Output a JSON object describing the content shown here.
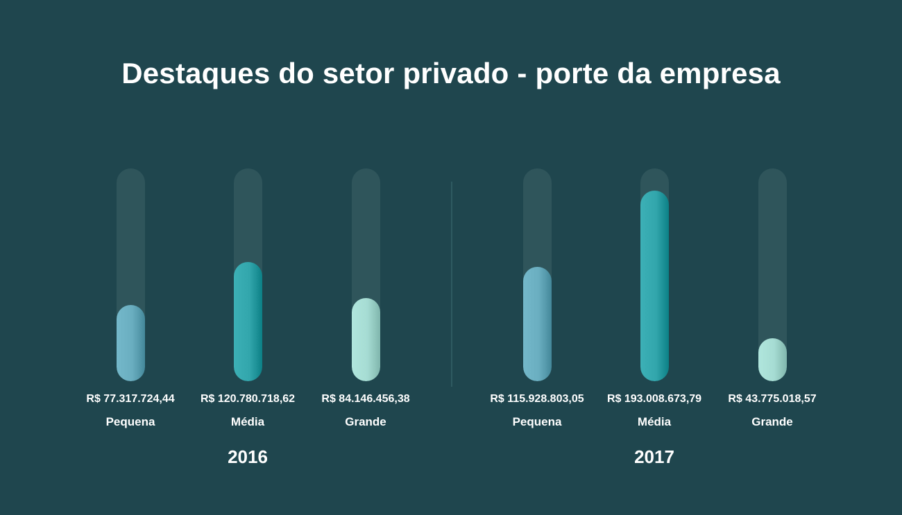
{
  "chart_data": {
    "type": "bar",
    "title": "Destaques do setor privado - porte da empresa",
    "ylim": [
      0,
      200000000
    ],
    "groups": [
      {
        "label": "2016",
        "bars": [
          {
            "category": "Pequena",
            "value": 77317724.44,
            "value_label": "R$ 77.317.724,44",
            "color": "#6aaec0"
          },
          {
            "category": "Média",
            "value": 120780718.62,
            "value_label": "R$ 120.780.718,62",
            "color": "#32a6ac"
          },
          {
            "category": "Grande",
            "value": 84146456.38,
            "value_label": "R$ 84.146.456,38",
            "color": "#a6dcd3"
          }
        ]
      },
      {
        "label": "2017",
        "bars": [
          {
            "category": "Pequena",
            "value": 115928803.05,
            "value_label": "R$ 115.928.803,05",
            "color": "#6aaec0"
          },
          {
            "category": "Média",
            "value": 193008673.79,
            "value_label": "R$ 193.008.673,79",
            "color": "#32a6ac"
          },
          {
            "category": "Grande",
            "value": 43775018.57,
            "value_label": "R$ 43.775.018,57",
            "color": "#a6dcd3"
          }
        ]
      }
    ]
  }
}
